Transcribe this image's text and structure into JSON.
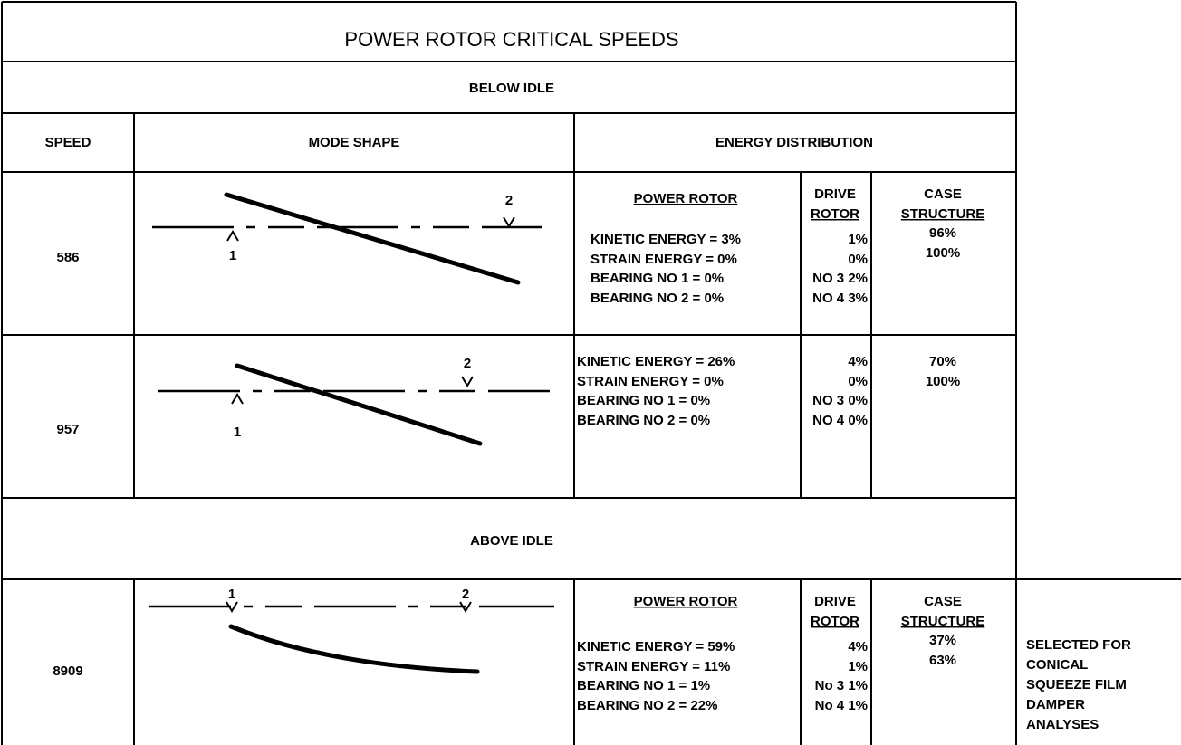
{
  "title": "POWER ROTOR CRITICAL SPEEDS",
  "headers": {
    "speed": "SPEED",
    "mode_shape": "MODE SHAPE",
    "energy_distribution": "ENERGY DISTRIBUTION"
  },
  "sections": [
    "BELOW IDLE",
    "ABOVE IDLE"
  ],
  "rows": [
    {
      "speed": "586",
      "mode_labels": [
        "1",
        "2"
      ],
      "power_rotor_header": "POWER ROTOR",
      "power_rotor": [
        "KINETIC ENERGY = 3%",
        "STRAIN ENERGY = 0%",
        "BEARING NO 1 = 0%",
        "BEARING NO 2 = 0%"
      ],
      "drive_header": [
        "DRIVE",
        "ROTOR"
      ],
      "drive": [
        "1%",
        "0%",
        "NO 3 2%",
        "NO 4 3%"
      ],
      "case_header": [
        "CASE",
        "STRUCTURE"
      ],
      "case": [
        "96%",
        "100%"
      ]
    },
    {
      "speed": "957",
      "mode_labels": [
        "1",
        "2"
      ],
      "power_rotor": [
        "KINETIC ENERGY = 26%",
        "STRAIN ENERGY = 0%",
        "BEARING NO 1 = 0%",
        "BEARING NO 2 = 0%"
      ],
      "drive": [
        "4%",
        "0%",
        "NO 3 0%",
        "NO 4 0%"
      ],
      "case": [
        "70%",
        "100%"
      ]
    },
    {
      "speed": "8909",
      "mode_labels": [
        "1",
        "2"
      ],
      "power_rotor_header": "POWER ROTOR",
      "power_rotor": [
        "KINETIC ENERGY = 59%",
        "STRAIN ENERGY = 11%",
        "BEARING NO 1 = 1%",
        "BEARING NO 2 = 22%"
      ],
      "drive_header": [
        "DRIVE",
        "ROTOR"
      ],
      "drive": [
        "4%",
        "1%",
        "No 3 1%",
        "No 4 1%"
      ],
      "case_header": [
        "CASE",
        "STRUCTURE"
      ],
      "case": [
        "37%",
        "63%"
      ],
      "note": [
        "SELECTED FOR",
        "CONICAL",
        "SQUEEZE FILM",
        "DAMPER",
        "ANALYSES"
      ]
    }
  ]
}
